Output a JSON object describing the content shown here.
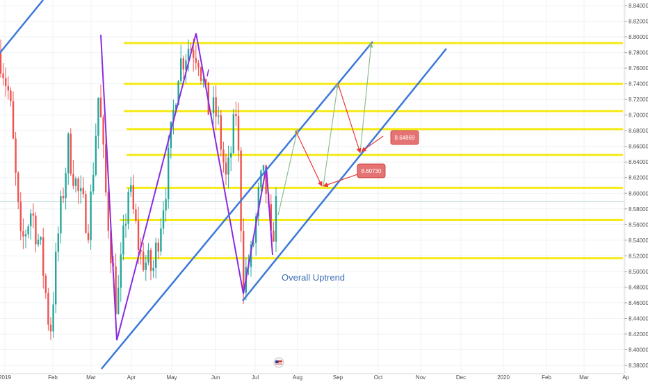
{
  "chart_data": {
    "type": "candlestick",
    "x_axis": {
      "tick_labels": [
        "2019",
        "Feb",
        "Mar",
        "Apr",
        "May",
        "Jun",
        "Jul",
        "Aug",
        "Sep",
        "Oct",
        "Nov",
        "Dec",
        "2020",
        "Feb",
        "Mar",
        "Ap"
      ]
    },
    "y_axis": {
      "range": [
        8.37,
        8.85
      ],
      "tick_labels": [
        "8.84000",
        "8.82000",
        "8.80000",
        "8.78000",
        "8.76000",
        "8.74000",
        "8.72000",
        "8.70000",
        "8.68000",
        "8.66000",
        "8.64000",
        "8.62000",
        "8.60000",
        "8.58000",
        "8.56000",
        "8.54000",
        "8.52000",
        "8.50000",
        "8.48000",
        "8.46000",
        "8.44000",
        "8.42000",
        "8.40000",
        "8.38000"
      ],
      "tick_values": [
        8.84,
        8.82,
        8.8,
        8.78,
        8.76,
        8.74,
        8.72,
        8.7,
        8.68,
        8.66,
        8.64,
        8.62,
        8.6,
        8.58,
        8.56,
        8.54,
        8.52,
        8.5,
        8.48,
        8.46,
        8.44,
        8.42,
        8.4,
        8.38
      ]
    },
    "price_line": 8.589,
    "horizontal_levels": [
      8.792,
      8.74,
      8.705,
      8.682,
      8.649,
      8.607,
      8.566,
      8.517
    ],
    "annotation_text": "Overall Uptrend",
    "callouts": [
      {
        "label": "8.64869",
        "value": 8.64869
      },
      {
        "label": "8.60730",
        "value": 8.6073
      }
    ],
    "colors": {
      "up": "#26a69a",
      "down": "#ef5350",
      "level": "#f5ea14",
      "trend": "#3b78d8",
      "zigzag": "#8a2be2",
      "projection_red": "#e53935",
      "projection_green": "#8fbc8f",
      "callout_bg": "#e57373",
      "grid": "#eef1f5"
    }
  }
}
